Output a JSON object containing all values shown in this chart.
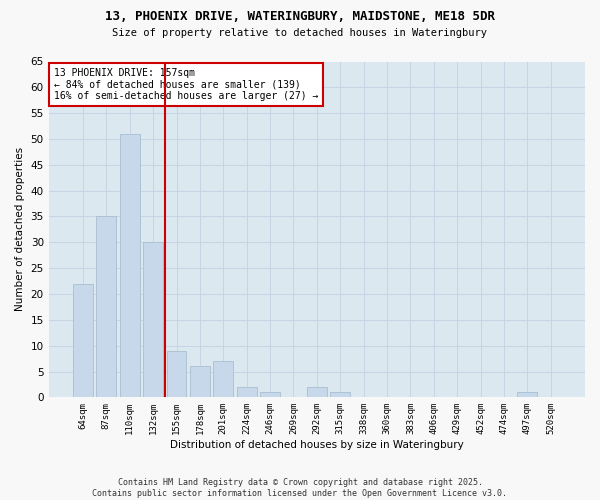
{
  "title1": "13, PHOENIX DRIVE, WATERINGBURY, MAIDSTONE, ME18 5DR",
  "title2": "Size of property relative to detached houses in Wateringbury",
  "xlabel": "Distribution of detached houses by size in Wateringbury",
  "ylabel": "Number of detached properties",
  "categories": [
    "64sqm",
    "87sqm",
    "110sqm",
    "132sqm",
    "155sqm",
    "178sqm",
    "201sqm",
    "224sqm",
    "246sqm",
    "269sqm",
    "292sqm",
    "315sqm",
    "338sqm",
    "360sqm",
    "383sqm",
    "406sqm",
    "429sqm",
    "452sqm",
    "474sqm",
    "497sqm",
    "520sqm"
  ],
  "values": [
    22,
    35,
    51,
    30,
    9,
    6,
    7,
    2,
    1,
    0,
    2,
    1,
    0,
    0,
    0,
    0,
    0,
    0,
    0,
    1,
    0
  ],
  "bar_color": "#c8d8eb",
  "bar_edge_color": "#a8bfd0",
  "vline_index": 4,
  "vline_color": "#cc0000",
  "annotation_line1": "13 PHOENIX DRIVE: 157sqm",
  "annotation_line2": "← 84% of detached houses are smaller (139)",
  "annotation_line3": "16% of semi-detached houses are larger (27) →",
  "annotation_box_color": "#cc0000",
  "ylim": [
    0,
    65
  ],
  "yticks": [
    0,
    5,
    10,
    15,
    20,
    25,
    30,
    35,
    40,
    45,
    50,
    55,
    60,
    65
  ],
  "grid_color": "#c8d4e4",
  "background_color": "#dce8f0",
  "fig_background": "#f8f8f8",
  "footer": "Contains HM Land Registry data © Crown copyright and database right 2025.\nContains public sector information licensed under the Open Government Licence v3.0."
}
